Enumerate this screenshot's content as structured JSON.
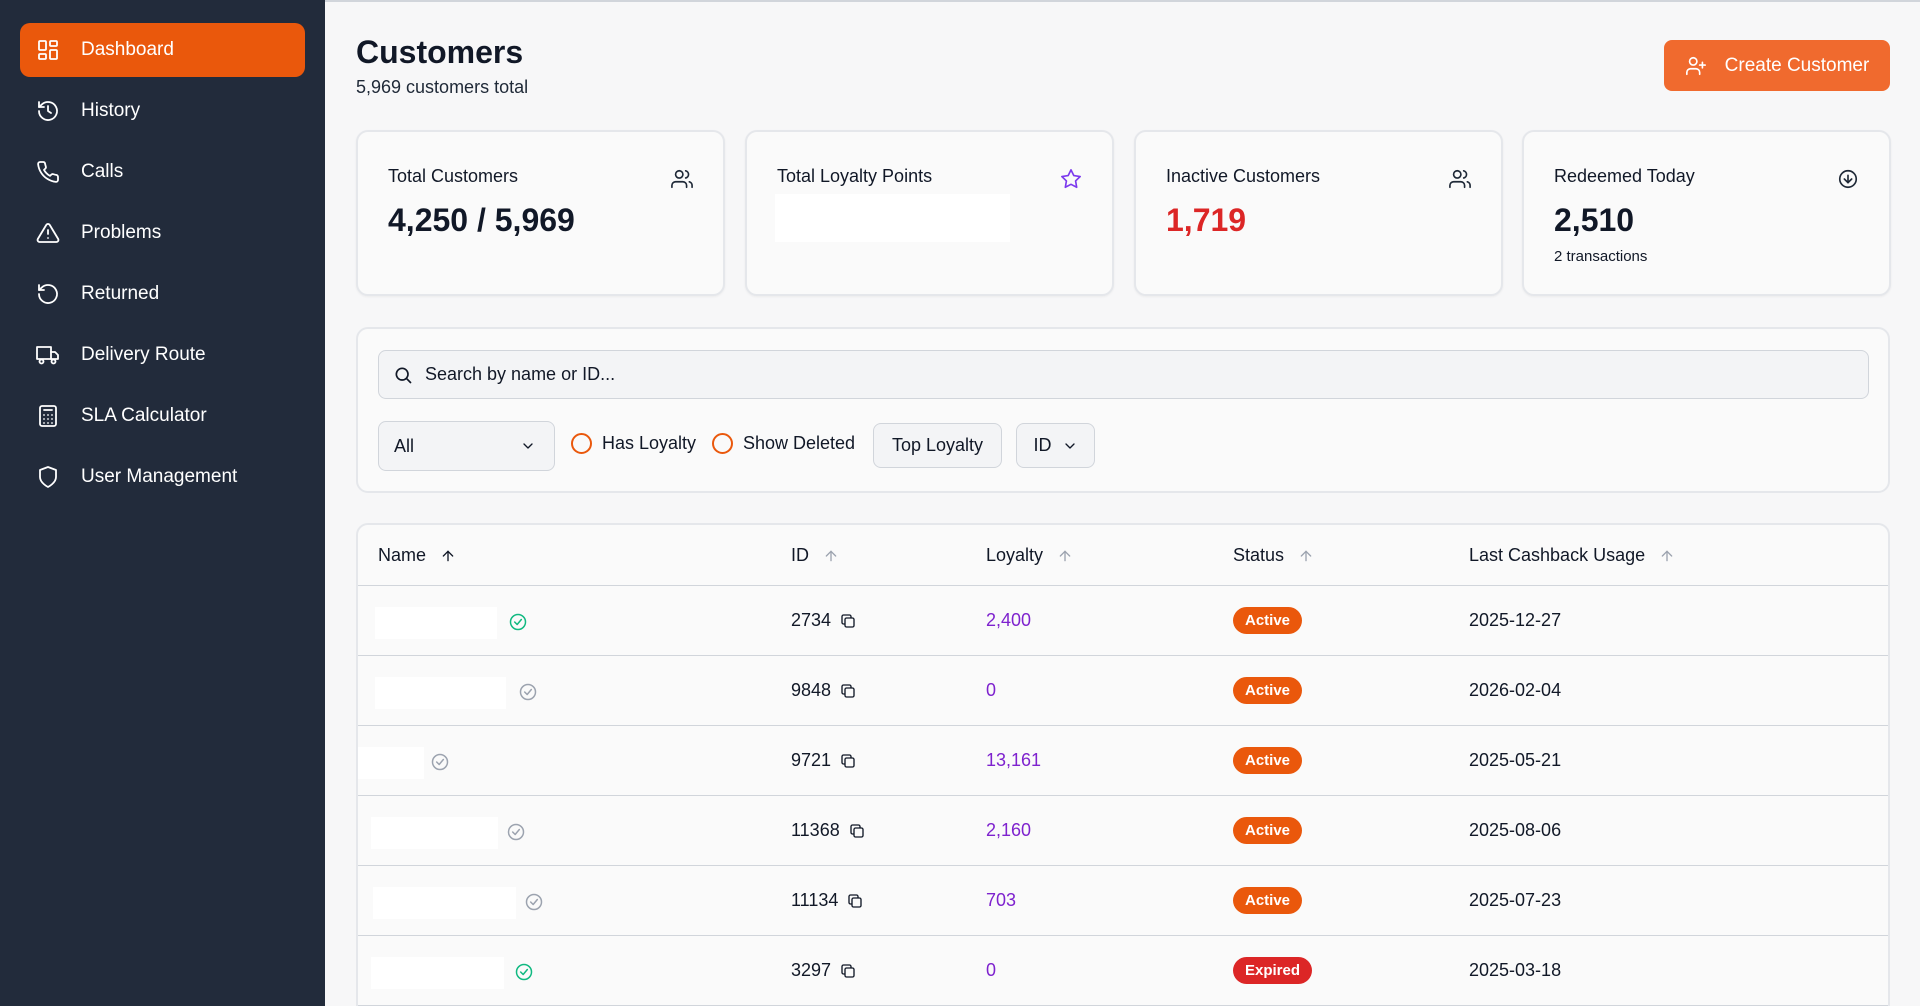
{
  "sidebar": {
    "items": [
      {
        "label": "Dashboard",
        "icon": "dashboard-icon",
        "active": true
      },
      {
        "label": "History",
        "icon": "history-icon"
      },
      {
        "label": "Calls",
        "icon": "phone-icon"
      },
      {
        "label": "Problems",
        "icon": "warning-icon"
      },
      {
        "label": "Returned",
        "icon": "return-icon"
      },
      {
        "label": "Delivery Route",
        "icon": "truck-icon"
      },
      {
        "label": "SLA Calculator",
        "icon": "calculator-icon"
      },
      {
        "label": "User Management",
        "icon": "shield-icon"
      }
    ]
  },
  "header": {
    "title": "Customers",
    "subtitle": "5,969 customers total",
    "create_label": "Create Customer"
  },
  "stats": {
    "total_customers": {
      "label": "Total Customers",
      "value": "4,250 / 5,969"
    },
    "total_loyalty": {
      "label": "Total Loyalty Points",
      "value": ""
    },
    "inactive": {
      "label": "Inactive Customers",
      "value": "1,719"
    },
    "redeemed": {
      "label": "Redeemed Today",
      "value": "2,510",
      "sub": "2 transactions"
    }
  },
  "filters": {
    "search_placeholder": "Search by name or ID...",
    "select_value": "All",
    "has_loyalty": "Has Loyalty",
    "show_deleted": "Show Deleted",
    "top_loyalty": "Top Loyalty",
    "sort_field": "ID"
  },
  "table": {
    "columns": [
      "Name",
      "ID",
      "Loyalty",
      "Status",
      "Last Cashback Usage"
    ],
    "rows": [
      {
        "id": "2734",
        "loyalty": "2,400",
        "status": "Active",
        "date": "2025-12-27",
        "verified": true
      },
      {
        "id": "9848",
        "loyalty": "0",
        "status": "Active",
        "date": "2026-02-04",
        "verified": false
      },
      {
        "id": "9721",
        "loyalty": "13,161",
        "status": "Active",
        "date": "2025-05-21",
        "verified": false
      },
      {
        "id": "11368",
        "loyalty": "2,160",
        "status": "Active",
        "date": "2025-08-06",
        "verified": false
      },
      {
        "id": "11134",
        "loyalty": "703",
        "status": "Active",
        "date": "2025-07-23",
        "verified": false
      },
      {
        "id": "3297",
        "loyalty": "0",
        "status": "Expired",
        "date": "2025-03-18",
        "verified": true
      }
    ]
  },
  "colors": {
    "accent": "#ea580c",
    "sidebar_bg": "#222b3b",
    "inactive_red": "#dc2626",
    "loyalty_purple": "#7e22ce",
    "active_badge": "#ea580c",
    "expired_badge": "#dc2626",
    "verified_green": "#10b981",
    "unverified_gray": "#9ca3af"
  }
}
